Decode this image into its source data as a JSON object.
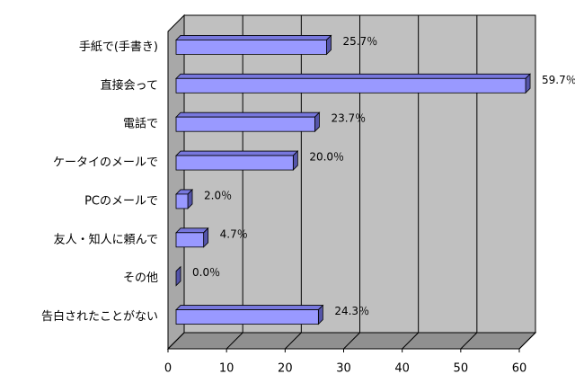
{
  "chart_data": {
    "type": "bar3d-horizontal",
    "categories": [
      "手紙で(手書き)",
      "直接会って",
      "電話で",
      "ケータイのメールで",
      "PCのメールで",
      "友人・知人に頼んで",
      "その他",
      "告白されたことがない"
    ],
    "values": [
      25.7,
      59.7,
      23.7,
      20.0,
      2.0,
      4.7,
      0.0,
      24.3
    ],
    "value_labels": [
      "25.7％",
      "59.7％",
      "23.7％",
      "20.0％",
      "2.0％",
      "4.7％",
      "0.0％",
      "24.3％"
    ],
    "color": "#9999ff",
    "xlim": [
      0,
      60
    ],
    "xticks": [
      0,
      10,
      20,
      30,
      40,
      50,
      60
    ],
    "grid": true
  }
}
